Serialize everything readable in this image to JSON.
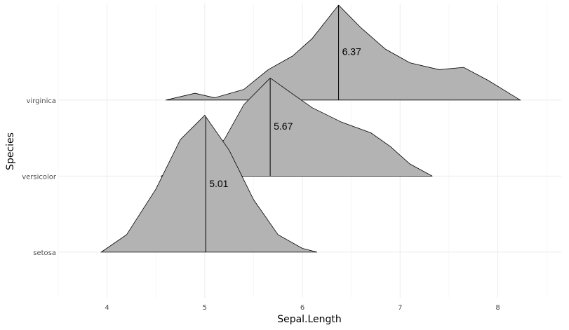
{
  "chart_data": {
    "type": "ridgeline",
    "x_label": "Sepal.Length",
    "y_label": "Species",
    "categories": [
      "setosa",
      "versicolor",
      "virginica"
    ],
    "xlim": [
      3.5,
      8.65
    ],
    "xticks": [
      4,
      5,
      6,
      7,
      8
    ],
    "ylim": [
      0.4,
      4.27
    ],
    "grid": true,
    "fill": "#b3b3b3",
    "series": [
      {
        "name": "setosa",
        "median": 5.01,
        "x": [
          3.94,
          4.2,
          4.5,
          4.75,
          5.0,
          5.25,
          5.5,
          5.75,
          6.0,
          6.15
        ],
        "density": [
          0,
          0.23,
          0.83,
          1.48,
          1.8,
          1.34,
          0.69,
          0.23,
          0.05,
          0
        ]
      },
      {
        "name": "versicolor",
        "median": 5.67,
        "x": [
          4.55,
          4.8,
          5.0,
          5.2,
          5.4,
          5.67,
          5.9,
          6.1,
          6.4,
          6.7,
          6.9,
          7.1,
          7.33
        ],
        "density": [
          0,
          0.1,
          0.25,
          0.48,
          0.94,
          1.29,
          1.08,
          0.9,
          0.71,
          0.57,
          0.39,
          0.16,
          0
        ]
      },
      {
        "name": "virginica",
        "median": 6.37,
        "x": [
          4.6,
          4.9,
          5.1,
          5.4,
          5.65,
          5.9,
          6.1,
          6.37,
          6.6,
          6.85,
          7.1,
          7.4,
          7.65,
          7.9,
          8.23
        ],
        "density": [
          0,
          0.09,
          0.03,
          0.14,
          0.4,
          0.58,
          0.81,
          1.25,
          0.95,
          0.67,
          0.49,
          0.4,
          0.43,
          0.26,
          0
        ]
      }
    ]
  }
}
